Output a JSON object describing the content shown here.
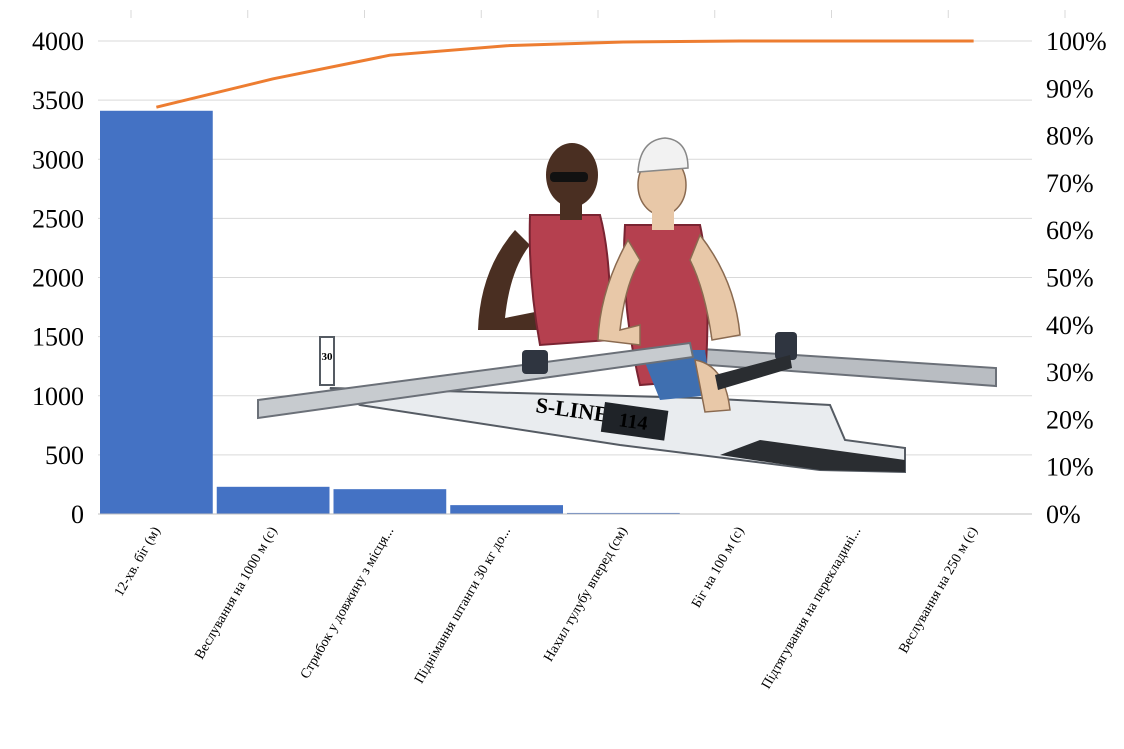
{
  "chart_data": {
    "type": "bar",
    "categories": [
      "12-хв. біг (м)",
      "Веслування на 1000 м (с)",
      "Стрибок у довжину з місця...",
      "Піднімання штанги 30 кг до...",
      "Нахил тулубу вперед (см)",
      "Біг на 100 м (с)",
      "Підтягування на перекладині...",
      "Веслування на 250 м (с)"
    ],
    "series": [
      {
        "values": [
          3410,
          230,
          210,
          75,
          9,
          3,
          0,
          0
        ],
        "color": "#4472C4"
      },
      {
        "values": [
          86,
          92,
          97,
          99,
          99.8,
          100,
          100,
          100
        ],
        "color": "#ED7D31",
        "axis": "right"
      }
    ],
    "y_left": {
      "min": 0,
      "max": 4000,
      "ticks": [
        "0",
        "500",
        "1000",
        "1500",
        "2000",
        "2500",
        "3000",
        "3500",
        "4000"
      ]
    },
    "y_right": {
      "min": 0,
      "max": 100,
      "ticks": [
        "0%",
        "10%",
        "20%",
        "30%",
        "40%",
        "50%",
        "60%",
        "70%",
        "80%",
        "90%",
        "100%"
      ]
    },
    "grid": true,
    "legend": "none",
    "title": "",
    "xlabel": "",
    "ylabel": ""
  },
  "illustration": {
    "boat_number": "114",
    "boat_brand": "S-LINE",
    "rigger_number": "30"
  }
}
